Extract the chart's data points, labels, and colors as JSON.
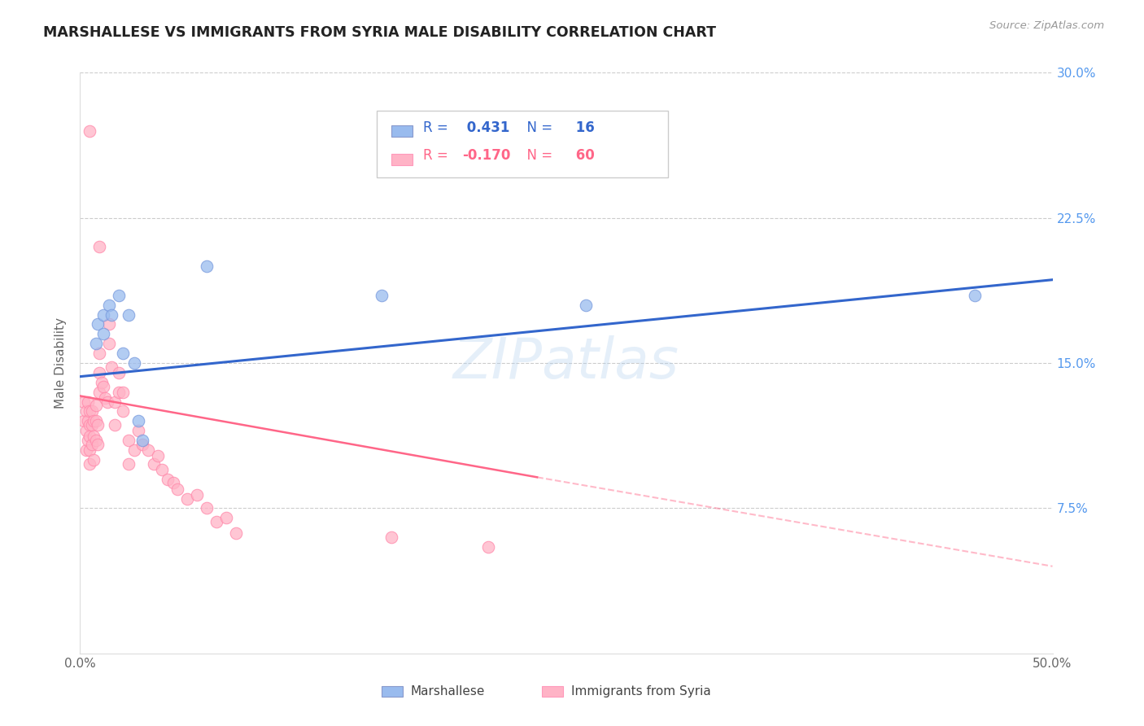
{
  "title": "MARSHALLESE VS IMMIGRANTS FROM SYRIA MALE DISABILITY CORRELATION CHART",
  "source": "Source: ZipAtlas.com",
  "ylabel": "Male Disability",
  "xlim": [
    0.0,
    0.5
  ],
  "ylim": [
    0.0,
    0.3
  ],
  "color_blue": "#99BBEE",
  "color_pink": "#FFB3C6",
  "color_blue_line": "#3366CC",
  "color_pink_line": "#FF6688",
  "watermark": "ZIPatlas",
  "marshallese_x": [
    0.008,
    0.009,
    0.012,
    0.012,
    0.015,
    0.016,
    0.02,
    0.022,
    0.025,
    0.028,
    0.03,
    0.032,
    0.065,
    0.155,
    0.26,
    0.46
  ],
  "marshallese_y": [
    0.16,
    0.17,
    0.175,
    0.165,
    0.18,
    0.175,
    0.185,
    0.155,
    0.175,
    0.15,
    0.12,
    0.11,
    0.2,
    0.185,
    0.18,
    0.185
  ],
  "syria_x": [
    0.002,
    0.002,
    0.003,
    0.003,
    0.003,
    0.004,
    0.004,
    0.004,
    0.005,
    0.005,
    0.005,
    0.005,
    0.005,
    0.006,
    0.006,
    0.006,
    0.007,
    0.007,
    0.007,
    0.008,
    0.008,
    0.008,
    0.009,
    0.009,
    0.01,
    0.01,
    0.01,
    0.011,
    0.012,
    0.013,
    0.014,
    0.015,
    0.015,
    0.016,
    0.018,
    0.018,
    0.02,
    0.02,
    0.022,
    0.022,
    0.025,
    0.025,
    0.028,
    0.03,
    0.032,
    0.035,
    0.038,
    0.04,
    0.042,
    0.045,
    0.048,
    0.05,
    0.055,
    0.06,
    0.065,
    0.07,
    0.075,
    0.08,
    0.16,
    0.21
  ],
  "syria_y": [
    0.13,
    0.12,
    0.125,
    0.115,
    0.105,
    0.13,
    0.12,
    0.11,
    0.125,
    0.118,
    0.112,
    0.105,
    0.098,
    0.125,
    0.118,
    0.108,
    0.12,
    0.112,
    0.1,
    0.128,
    0.12,
    0.11,
    0.118,
    0.108,
    0.155,
    0.145,
    0.135,
    0.14,
    0.138,
    0.132,
    0.13,
    0.17,
    0.16,
    0.148,
    0.13,
    0.118,
    0.145,
    0.135,
    0.135,
    0.125,
    0.11,
    0.098,
    0.105,
    0.115,
    0.108,
    0.105,
    0.098,
    0.102,
    0.095,
    0.09,
    0.088,
    0.085,
    0.08,
    0.082,
    0.075,
    0.068,
    0.07,
    0.062,
    0.06,
    0.055
  ],
  "syria_outlier_x": [
    0.005
  ],
  "syria_outlier_y": [
    0.27
  ],
  "syria_outlier2_x": [
    0.01
  ],
  "syria_outlier2_y": [
    0.21
  ],
  "blue_line_x0": 0.0,
  "blue_line_y0": 0.143,
  "blue_line_x1": 0.5,
  "blue_line_y1": 0.193,
  "pink_line_x0": 0.0,
  "pink_line_y0": 0.133,
  "pink_line_x1_solid": 0.235,
  "pink_line_y1_solid": 0.091,
  "pink_line_x2": 0.5,
  "pink_line_y2": 0.045
}
